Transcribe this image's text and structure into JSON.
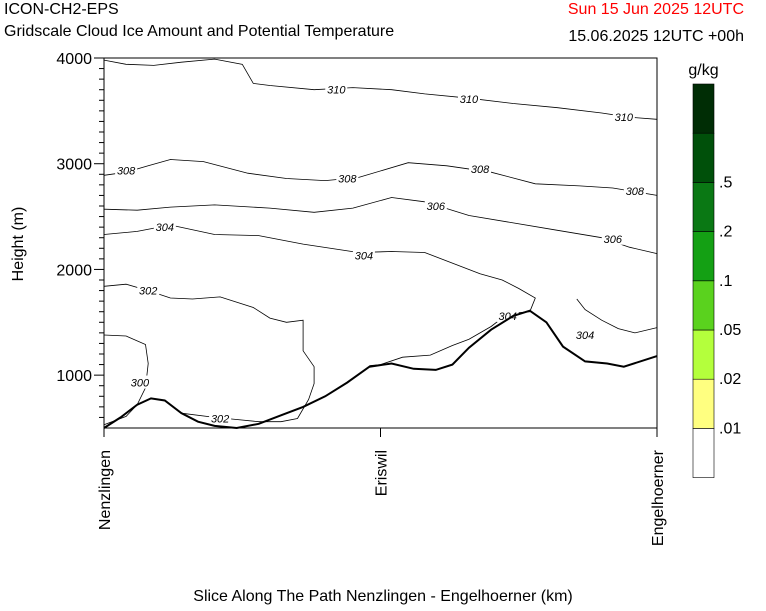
{
  "header": {
    "model": "ICON-CH2-EPS",
    "subtitle": "Gridscale Cloud Ice Amount and Potential Temperature",
    "valid_time": "Sun 15 Jun 2025 12UTC",
    "run_info": "15.06.2025 12UTC +00h"
  },
  "colors": {
    "valid_time": "#ff0000",
    "terrain": "#000000"
  },
  "chart_data": {
    "type": "contour",
    "xlabel": "Slice Along The Path Nenzlingen - Engelhoerner (km)",
    "ylabel": "Height (m)",
    "ylim": [
      500,
      4000
    ],
    "y_ticks": [
      1000,
      2000,
      3000,
      4000
    ],
    "x_ticks": [
      {
        "label": "Nenzlingen",
        "pos": 0.0
      },
      {
        "label": "Eriswil",
        "pos": 0.5
      },
      {
        "label": "Engelhoerner",
        "pos": 1.0
      }
    ],
    "terrain": [
      [
        0.0,
        500
      ],
      [
        0.03,
        600
      ],
      [
        0.06,
        720
      ],
      [
        0.085,
        780
      ],
      [
        0.11,
        760
      ],
      [
        0.14,
        640
      ],
      [
        0.17,
        560
      ],
      [
        0.2,
        520
      ],
      [
        0.24,
        500
      ],
      [
        0.28,
        540
      ],
      [
        0.32,
        620
      ],
      [
        0.36,
        700
      ],
      [
        0.4,
        800
      ],
      [
        0.44,
        930
      ],
      [
        0.48,
        1080
      ],
      [
        0.52,
        1110
      ],
      [
        0.56,
        1060
      ],
      [
        0.6,
        1050
      ],
      [
        0.63,
        1100
      ],
      [
        0.66,
        1260
      ],
      [
        0.7,
        1430
      ],
      [
        0.74,
        1560
      ],
      [
        0.77,
        1610
      ],
      [
        0.8,
        1500
      ],
      [
        0.83,
        1270
      ],
      [
        0.87,
        1130
      ],
      [
        0.91,
        1110
      ],
      [
        0.94,
        1080
      ],
      [
        1.0,
        1180
      ]
    ],
    "contours": [
      {
        "level": 310,
        "points": [
          [
            0.0,
            3980
          ],
          [
            0.04,
            3940
          ],
          [
            0.09,
            3930
          ],
          [
            0.14,
            3960
          ],
          [
            0.2,
            3990
          ],
          [
            0.25,
            3940
          ],
          [
            0.27,
            3760
          ],
          [
            0.3,
            3740
          ],
          [
            0.38,
            3700
          ],
          [
            0.45,
            3720
          ],
          [
            0.52,
            3700
          ],
          [
            0.58,
            3660
          ],
          [
            0.66,
            3620
          ],
          [
            0.74,
            3570
          ],
          [
            0.82,
            3530
          ],
          [
            0.9,
            3480
          ],
          [
            0.95,
            3440
          ],
          [
            1.0,
            3420
          ]
        ],
        "labels": [
          [
            0.42,
            3700
          ],
          [
            0.66,
            3610
          ],
          [
            0.94,
            3440
          ]
        ]
      },
      {
        "level": 308,
        "points": [
          [
            0.0,
            2890
          ],
          [
            0.04,
            2920
          ],
          [
            0.08,
            2980
          ],
          [
            0.12,
            3040
          ],
          [
            0.18,
            3020
          ],
          [
            0.26,
            2910
          ],
          [
            0.33,
            2860
          ],
          [
            0.4,
            2840
          ],
          [
            0.46,
            2870
          ],
          [
            0.55,
            3010
          ],
          [
            0.62,
            2980
          ],
          [
            0.7,
            2920
          ],
          [
            0.78,
            2810
          ],
          [
            0.86,
            2790
          ],
          [
            0.92,
            2770
          ],
          [
            1.0,
            2700
          ]
        ],
        "labels": [
          [
            0.04,
            2935
          ],
          [
            0.44,
            2860
          ],
          [
            0.68,
            2950
          ],
          [
            0.96,
            2740
          ]
        ]
      },
      {
        "level": 306,
        "points": [
          [
            0.0,
            2570
          ],
          [
            0.06,
            2560
          ],
          [
            0.12,
            2590
          ],
          [
            0.2,
            2610
          ],
          [
            0.3,
            2580
          ],
          [
            0.38,
            2540
          ],
          [
            0.45,
            2580
          ],
          [
            0.52,
            2680
          ],
          [
            0.58,
            2640
          ],
          [
            0.66,
            2510
          ],
          [
            0.74,
            2440
          ],
          [
            0.82,
            2370
          ],
          [
            0.9,
            2300
          ],
          [
            0.95,
            2210
          ],
          [
            1.0,
            2150
          ]
        ],
        "labels": [
          [
            0.6,
            2600
          ],
          [
            0.92,
            2290
          ]
        ]
      },
      {
        "level": 304,
        "points": [
          [
            0.0,
            2330
          ],
          [
            0.06,
            2360
          ],
          [
            0.12,
            2420
          ],
          [
            0.2,
            2330
          ],
          [
            0.28,
            2320
          ],
          [
            0.36,
            2240
          ],
          [
            0.46,
            2160
          ],
          [
            0.52,
            2170
          ],
          [
            0.58,
            2160
          ],
          [
            0.64,
            2040
          ],
          [
            0.68,
            1960
          ],
          [
            0.72,
            1900
          ],
          [
            0.75,
            1820
          ],
          [
            0.78,
            1730
          ],
          [
            0.77,
            1600
          ],
          [
            0.73,
            1580
          ],
          [
            0.7,
            1460
          ],
          [
            0.66,
            1340
          ],
          [
            0.63,
            1280
          ],
          [
            0.59,
            1190
          ],
          [
            0.54,
            1170
          ],
          [
            0.5,
            1100
          ],
          [
            0.48,
            1090
          ]
        ],
        "labels": [
          [
            0.11,
            2400
          ],
          [
            0.47,
            2130
          ],
          [
            0.73,
            1560
          ],
          [
            0.87,
            1380
          ]
        ]
      },
      {
        "level": 304,
        "points": [
          [
            0.855,
            1720
          ],
          [
            0.87,
            1620
          ],
          [
            0.9,
            1520
          ],
          [
            0.93,
            1440
          ],
          [
            0.96,
            1400
          ],
          [
            1.0,
            1450
          ]
        ],
        "labels": []
      },
      {
        "level": 302,
        "points": [
          [
            0.0,
            1840
          ],
          [
            0.04,
            1860
          ],
          [
            0.08,
            1800
          ],
          [
            0.12,
            1730
          ],
          [
            0.16,
            1720
          ],
          [
            0.21,
            1740
          ],
          [
            0.27,
            1640
          ],
          [
            0.3,
            1540
          ],
          [
            0.33,
            1500
          ],
          [
            0.36,
            1520
          ],
          [
            0.36,
            1230
          ],
          [
            0.38,
            1080
          ],
          [
            0.38,
            920
          ],
          [
            0.37,
            770
          ],
          [
            0.35,
            590
          ],
          [
            0.32,
            560
          ],
          [
            0.28,
            560
          ],
          [
            0.24,
            580
          ],
          [
            0.2,
            600
          ],
          [
            0.14,
            640
          ]
        ],
        "labels": [
          [
            0.08,
            1800
          ],
          [
            0.21,
            590
          ]
        ]
      },
      {
        "level": 300,
        "points": [
          [
            0.0,
            1380
          ],
          [
            0.04,
            1370
          ],
          [
            0.075,
            1290
          ],
          [
            0.08,
            1110
          ],
          [
            0.075,
            880
          ],
          [
            0.06,
            720
          ],
          [
            0.04,
            610
          ],
          [
            0.0,
            530
          ]
        ],
        "labels": [
          [
            0.065,
            930
          ]
        ]
      }
    ],
    "legend": {
      "title": "g/kg",
      "bins": [
        {
          "label": "",
          "color": "#ffffff"
        },
        {
          "label": ".01",
          "color": "#ffff80"
        },
        {
          "label": ".02",
          "color": "#b4ff3c"
        },
        {
          "label": ".05",
          "color": "#5ad21e"
        },
        {
          "label": ".1",
          "color": "#14a014"
        },
        {
          "label": ".2",
          "color": "#0a7814"
        },
        {
          "label": ".5",
          "color": "#00500a"
        },
        {
          "label": "",
          "color": "#002d05"
        }
      ]
    }
  }
}
